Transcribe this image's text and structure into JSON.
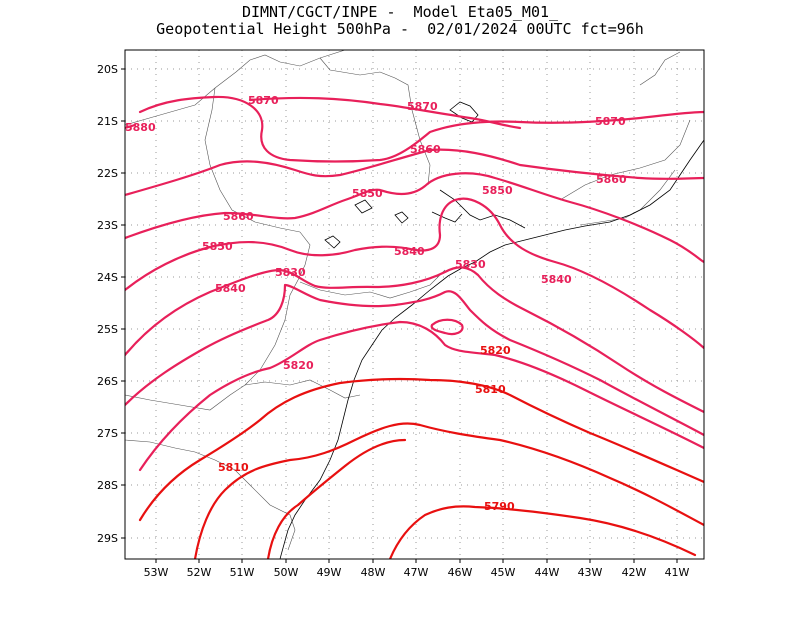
{
  "title": {
    "line1": "DIMNT/CGCT/INPE -  Model Eta05_M01_",
    "line2": "Geopotential Height 500hPa -  02/01/2024 00UTC fct=96h"
  },
  "axes": {
    "lat_labels": [
      "20S",
      "21S",
      "22S",
      "23S",
      "24S",
      "25S",
      "26S",
      "27S",
      "28S",
      "29S"
    ],
    "lon_labels": [
      "53W",
      "52W",
      "51W",
      "50W",
      "49W",
      "48W",
      "47W",
      "46W",
      "45W",
      "44W",
      "43W",
      "42W",
      "41W"
    ]
  },
  "contour_labels": {
    "l5880": "5880",
    "l5870a": "5870",
    "l5870b": "5870",
    "l5870c": "5870",
    "l5860a": "5860",
    "l5860b": "5860",
    "l5860c": "5860",
    "l5850a": "5850",
    "l5850b": "5850",
    "l5850c": "5850",
    "l5840a": "5840",
    "l5840b": "5840",
    "l5840c": "5840",
    "l5830a": "5830",
    "l5830b": "5830",
    "l5820a": "5820",
    "l5820b": "5820",
    "l5810a": "5810",
    "l5810b": "5810",
    "l5790": "5790"
  },
  "colors": {
    "contour_high": "#e8205a",
    "contour_low": "#e81010",
    "label_high": "#e8205a",
    "label_low": "#e81010"
  }
}
